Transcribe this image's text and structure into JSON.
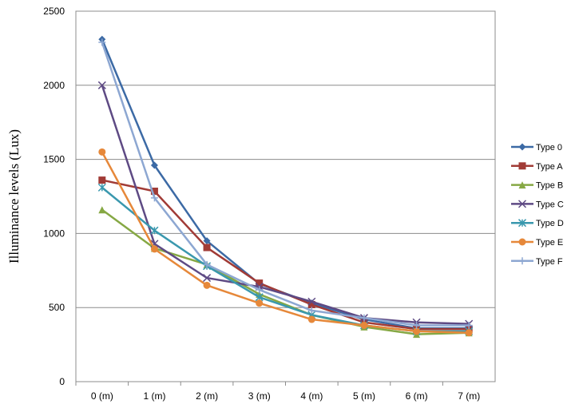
{
  "chart_data": {
    "type": "line",
    "title": "",
    "xlabel": "",
    "ylabel": "Illuminance levels (Lux)",
    "ylim": [
      0,
      2500
    ],
    "yticks": [
      0,
      500,
      1000,
      1500,
      2000,
      2500
    ],
    "categories": [
      "0 (m)",
      "1 (m)",
      "2 (m)",
      "3 (m)",
      "4 (m)",
      "5 (m)",
      "6 (m)",
      "7 (m)"
    ],
    "grid": true,
    "legend": "right",
    "series": [
      {
        "name": "Type 0",
        "color": "#3C6AA5",
        "marker": "diamond",
        "values": [
          2310,
          1460,
          950,
          660,
          530,
          420,
          360,
          360
        ]
      },
      {
        "name": "Type A",
        "color": "#A13B36",
        "marker": "square",
        "values": [
          1360,
          1285,
          905,
          665,
          520,
          400,
          355,
          355
        ]
      },
      {
        "name": "Type B",
        "color": "#86A844",
        "marker": "triangle",
        "values": [
          1160,
          900,
          790,
          590,
          450,
          370,
          320,
          330
        ]
      },
      {
        "name": "Type C",
        "color": "#5E4A84",
        "marker": "x",
        "values": [
          2000,
          930,
          700,
          640,
          540,
          430,
          400,
          390
        ]
      },
      {
        "name": "Type D",
        "color": "#3A98AE",
        "marker": "star",
        "values": [
          1310,
          1020,
          780,
          570,
          450,
          380,
          340,
          340
        ]
      },
      {
        "name": "Type E",
        "color": "#E6883A",
        "marker": "circle",
        "values": [
          1550,
          895,
          650,
          530,
          420,
          380,
          340,
          330
        ]
      },
      {
        "name": "Type F",
        "color": "#8DA7D2",
        "marker": "plus",
        "values": [
          2290,
          1240,
          790,
          620,
          480,
          430,
          380,
          380
        ]
      }
    ]
  }
}
